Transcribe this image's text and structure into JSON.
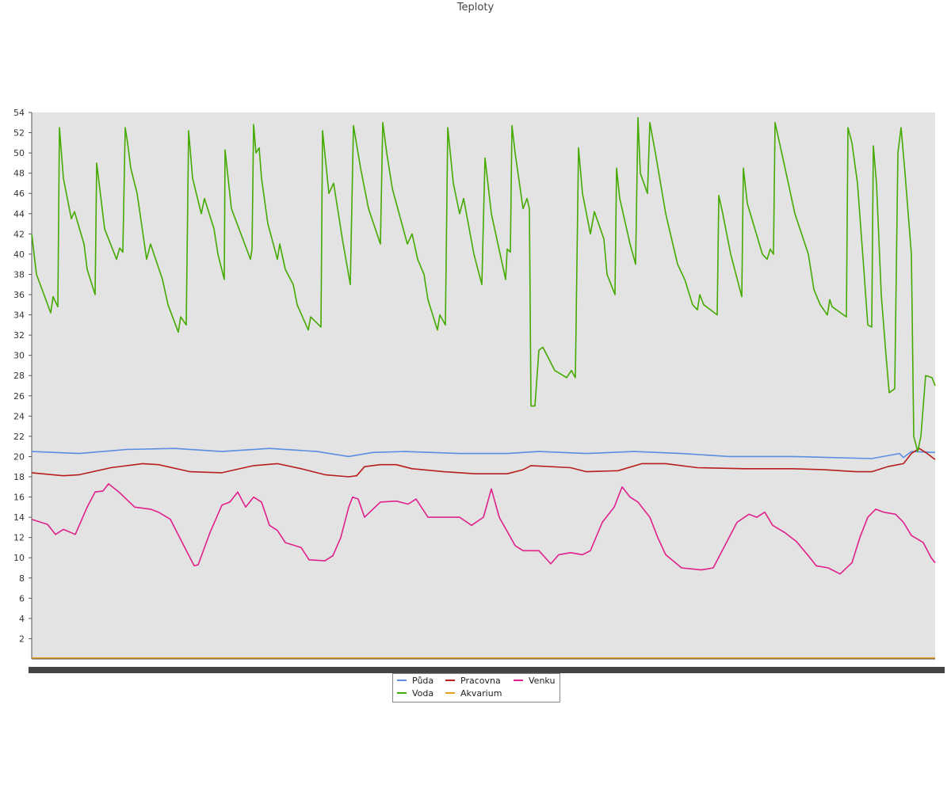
{
  "chart_data": {
    "type": "line",
    "title": "Teploty",
    "xlabel": "",
    "ylabel": "",
    "ylim": [
      0,
      54
    ],
    "yticks": [
      2,
      4,
      6,
      8,
      10,
      12,
      14,
      16,
      18,
      20,
      22,
      24,
      26,
      28,
      30,
      32,
      34,
      36,
      38,
      40,
      42,
      44,
      46,
      48,
      50,
      52,
      54
    ],
    "grid": false,
    "legend_position": "bottom",
    "x_domain": [
      0,
      1140
    ],
    "series": [
      {
        "name": "Půda",
        "color": "#5b8de0",
        "points": [
          [
            0,
            20.5
          ],
          [
            60,
            20.3
          ],
          [
            120,
            20.7
          ],
          [
            180,
            20.8
          ],
          [
            240,
            20.5
          ],
          [
            300,
            20.8
          ],
          [
            360,
            20.5
          ],
          [
            400,
            20.0
          ],
          [
            430,
            20.4
          ],
          [
            470,
            20.5
          ],
          [
            540,
            20.3
          ],
          [
            600,
            20.3
          ],
          [
            640,
            20.5
          ],
          [
            700,
            20.3
          ],
          [
            760,
            20.5
          ],
          [
            820,
            20.3
          ],
          [
            880,
            20.0
          ],
          [
            960,
            20.0
          ],
          [
            1060,
            19.8
          ],
          [
            1095,
            20.3
          ],
          [
            1100,
            19.9
          ],
          [
            1110,
            20.5
          ],
          [
            1140,
            20.4
          ]
        ]
      },
      {
        "name": "Voda",
        "color": "#44aa00",
        "points": [
          [
            0,
            42.0
          ],
          [
            6,
            38.0
          ],
          [
            24,
            34.2
          ],
          [
            27,
            35.8
          ],
          [
            33,
            34.8
          ],
          [
            35,
            52.5
          ],
          [
            40,
            47.5
          ],
          [
            50,
            43.5
          ],
          [
            54,
            44.2
          ],
          [
            66,
            41.0
          ],
          [
            70,
            38.5
          ],
          [
            80,
            36.0
          ],
          [
            82,
            49.0
          ],
          [
            92,
            42.5
          ],
          [
            107,
            39.5
          ],
          [
            111,
            40.6
          ],
          [
            115,
            40.2
          ],
          [
            118,
            52.5
          ],
          [
            121,
            51.0
          ],
          [
            125,
            48.5
          ],
          [
            133,
            46.0
          ],
          [
            145,
            39.5
          ],
          [
            150,
            41.0
          ],
          [
            165,
            37.5
          ],
          [
            172,
            35.0
          ],
          [
            185,
            32.3
          ],
          [
            188,
            33.8
          ],
          [
            195,
            33.0
          ],
          [
            198,
            52.2
          ],
          [
            203,
            47.5
          ],
          [
            214,
            44.0
          ],
          [
            218,
            45.5
          ],
          [
            230,
            42.5
          ],
          [
            235,
            40.0
          ],
          [
            243,
            37.5
          ],
          [
            244,
            50.3
          ],
          [
            252,
            44.5
          ],
          [
            276,
            39.5
          ],
          [
            278,
            40.5
          ],
          [
            280,
            52.8
          ],
          [
            283,
            50.0
          ],
          [
            287,
            50.5
          ],
          [
            290,
            47.5
          ],
          [
            298,
            43.0
          ],
          [
            310,
            39.5
          ],
          [
            313,
            41.0
          ],
          [
            320,
            38.5
          ],
          [
            330,
            37.0
          ],
          [
            335,
            35.0
          ],
          [
            349,
            32.5
          ],
          [
            352,
            33.8
          ],
          [
            365,
            32.8
          ],
          [
            367,
            52.2
          ],
          [
            375,
            46.0
          ],
          [
            381,
            47.0
          ],
          [
            385,
            45.0
          ],
          [
            392,
            41.5
          ],
          [
            402,
            37.0
          ],
          [
            406,
            52.7
          ],
          [
            415,
            48.5
          ],
          [
            425,
            44.5
          ],
          [
            440,
            41.0
          ],
          [
            443,
            53.0
          ],
          [
            448,
            50.0
          ],
          [
            455,
            46.5
          ],
          [
            474,
            41.0
          ],
          [
            480,
            42.0
          ],
          [
            487,
            39.5
          ],
          [
            495,
            38.0
          ],
          [
            500,
            35.5
          ],
          [
            512,
            32.5
          ],
          [
            515,
            34.0
          ],
          [
            522,
            33.0
          ],
          [
            525,
            52.5
          ],
          [
            532,
            47.0
          ],
          [
            540,
            44.0
          ],
          [
            545,
            45.5
          ],
          [
            558,
            40.0
          ],
          [
            568,
            37.0
          ],
          [
            572,
            49.5
          ],
          [
            580,
            44.0
          ],
          [
            598,
            37.5
          ],
          [
            600,
            40.5
          ],
          [
            604,
            40.2
          ],
          [
            606,
            52.7
          ],
          [
            610,
            50.0
          ],
          [
            620,
            44.5
          ],
          [
            625,
            45.5
          ],
          [
            628,
            44.5
          ],
          [
            630,
            25.0
          ],
          [
            635,
            25.0
          ],
          [
            640,
            30.5
          ],
          [
            645,
            30.8
          ],
          [
            660,
            28.5
          ],
          [
            675,
            27.8
          ],
          [
            681,
            28.5
          ],
          [
            686,
            27.8
          ],
          [
            690,
            50.5
          ],
          [
            695,
            46.0
          ],
          [
            705,
            42.0
          ],
          [
            710,
            44.2
          ],
          [
            722,
            41.5
          ],
          [
            726,
            38.0
          ],
          [
            736,
            36.0
          ],
          [
            738,
            48.5
          ],
          [
            742,
            45.5
          ],
          [
            755,
            41.0
          ],
          [
            762,
            39.0
          ],
          [
            765,
            53.5
          ],
          [
            768,
            48.0
          ],
          [
            777,
            46.0
          ],
          [
            780,
            53.0
          ],
          [
            787,
            50.0
          ],
          [
            800,
            44.0
          ],
          [
            815,
            39.0
          ],
          [
            824,
            37.5
          ],
          [
            834,
            35.0
          ],
          [
            840,
            34.5
          ],
          [
            843,
            36.0
          ],
          [
            848,
            35.0
          ],
          [
            865,
            34.0
          ],
          [
            867,
            45.8
          ],
          [
            872,
            44.0
          ],
          [
            882,
            40.0
          ],
          [
            896,
            35.8
          ],
          [
            898,
            48.5
          ],
          [
            903,
            45.0
          ],
          [
            922,
            40.0
          ],
          [
            928,
            39.5
          ],
          [
            932,
            40.5
          ],
          [
            936,
            40.0
          ],
          [
            938,
            53.0
          ],
          [
            945,
            50.5
          ],
          [
            952,
            48.0
          ],
          [
            963,
            44.0
          ],
          [
            980,
            40.0
          ],
          [
            987,
            36.5
          ],
          [
            995,
            35.0
          ],
          [
            1004,
            34.0
          ],
          [
            1007,
            35.5
          ],
          [
            1010,
            34.8
          ],
          [
            1028,
            33.8
          ],
          [
            1030,
            52.5
          ],
          [
            1035,
            51.0
          ],
          [
            1042,
            47.0
          ],
          [
            1050,
            38.5
          ],
          [
            1055,
            33.0
          ],
          [
            1060,
            32.8
          ],
          [
            1062,
            50.7
          ],
          [
            1066,
            47.0
          ],
          [
            1072,
            36.0
          ],
          [
            1078,
            30.0
          ],
          [
            1082,
            26.3
          ],
          [
            1089,
            26.7
          ],
          [
            1093,
            50.0
          ],
          [
            1097,
            52.5
          ],
          [
            1102,
            48.0
          ],
          [
            1106,
            44.0
          ],
          [
            1110,
            40.0
          ],
          [
            1113,
            22.0
          ],
          [
            1118,
            20.5
          ],
          [
            1122,
            22.0
          ],
          [
            1128,
            28.0
          ],
          [
            1136,
            27.8
          ],
          [
            1140,
            27.0
          ]
        ]
      },
      {
        "name": "Pracovna",
        "color": "#b81e1e",
        "points": [
          [
            0,
            18.4
          ],
          [
            40,
            18.1
          ],
          [
            60,
            18.2
          ],
          [
            100,
            18.9
          ],
          [
            140,
            19.3
          ],
          [
            160,
            19.2
          ],
          [
            200,
            18.5
          ],
          [
            240,
            18.4
          ],
          [
            280,
            19.1
          ],
          [
            310,
            19.3
          ],
          [
            340,
            18.8
          ],
          [
            370,
            18.2
          ],
          [
            400,
            18.0
          ],
          [
            410,
            18.1
          ],
          [
            420,
            19.0
          ],
          [
            440,
            19.2
          ],
          [
            460,
            19.2
          ],
          [
            480,
            18.8
          ],
          [
            520,
            18.5
          ],
          [
            560,
            18.3
          ],
          [
            600,
            18.3
          ],
          [
            620,
            18.7
          ],
          [
            630,
            19.1
          ],
          [
            680,
            18.9
          ],
          [
            700,
            18.5
          ],
          [
            740,
            18.6
          ],
          [
            770,
            19.3
          ],
          [
            800,
            19.3
          ],
          [
            840,
            18.9
          ],
          [
            900,
            18.8
          ],
          [
            960,
            18.8
          ],
          [
            1000,
            18.7
          ],
          [
            1040,
            18.5
          ],
          [
            1060,
            18.5
          ],
          [
            1080,
            19.0
          ],
          [
            1100,
            19.3
          ],
          [
            1110,
            20.3
          ],
          [
            1120,
            20.8
          ],
          [
            1130,
            20.3
          ],
          [
            1140,
            19.7
          ]
        ]
      },
      {
        "name": "Akvarium",
        "color": "#e8a020",
        "points": [
          [
            0,
            0.1
          ],
          [
            1140,
            0.1
          ]
        ]
      },
      {
        "name": "Venku",
        "color": "#e0208c",
        "points": [
          [
            0,
            13.8
          ],
          [
            20,
            13.3
          ],
          [
            30,
            12.3
          ],
          [
            40,
            12.8
          ],
          [
            55,
            12.3
          ],
          [
            70,
            15.0
          ],
          [
            80,
            16.5
          ],
          [
            90,
            16.6
          ],
          [
            97,
            17.3
          ],
          [
            110,
            16.5
          ],
          [
            130,
            15.0
          ],
          [
            150,
            14.8
          ],
          [
            160,
            14.5
          ],
          [
            175,
            13.8
          ],
          [
            190,
            11.5
          ],
          [
            205,
            9.2
          ],
          [
            210,
            9.3
          ],
          [
            225,
            12.5
          ],
          [
            240,
            15.2
          ],
          [
            250,
            15.5
          ],
          [
            260,
            16.5
          ],
          [
            270,
            15.0
          ],
          [
            280,
            16.0
          ],
          [
            290,
            15.5
          ],
          [
            300,
            13.2
          ],
          [
            310,
            12.7
          ],
          [
            320,
            11.5
          ],
          [
            340,
            11.0
          ],
          [
            350,
            9.8
          ],
          [
            370,
            9.7
          ],
          [
            380,
            10.2
          ],
          [
            390,
            12.0
          ],
          [
            400,
            15.0
          ],
          [
            405,
            16.0
          ],
          [
            412,
            15.8
          ],
          [
            420,
            14.0
          ],
          [
            440,
            15.5
          ],
          [
            460,
            15.6
          ],
          [
            475,
            15.3
          ],
          [
            485,
            15.8
          ],
          [
            500,
            14.0
          ],
          [
            520,
            14.0
          ],
          [
            540,
            14.0
          ],
          [
            555,
            13.2
          ],
          [
            570,
            14.0
          ],
          [
            580,
            16.8
          ],
          [
            590,
            14.0
          ],
          [
            610,
            11.2
          ],
          [
            620,
            10.7
          ],
          [
            640,
            10.7
          ],
          [
            655,
            9.4
          ],
          [
            665,
            10.3
          ],
          [
            680,
            10.5
          ],
          [
            695,
            10.3
          ],
          [
            705,
            10.7
          ],
          [
            720,
            13.5
          ],
          [
            735,
            15.0
          ],
          [
            745,
            17.0
          ],
          [
            755,
            16.0
          ],
          [
            765,
            15.5
          ],
          [
            780,
            14.0
          ],
          [
            790,
            12.0
          ],
          [
            800,
            10.3
          ],
          [
            820,
            9.0
          ],
          [
            845,
            8.8
          ],
          [
            860,
            9.0
          ],
          [
            870,
            10.5
          ],
          [
            890,
            13.5
          ],
          [
            905,
            14.3
          ],
          [
            915,
            14.0
          ],
          [
            925,
            14.5
          ],
          [
            935,
            13.2
          ],
          [
            950,
            12.5
          ],
          [
            965,
            11.6
          ],
          [
            980,
            10.2
          ],
          [
            990,
            9.2
          ],
          [
            1005,
            9.0
          ],
          [
            1020,
            8.4
          ],
          [
            1035,
            9.5
          ],
          [
            1045,
            12.0
          ],
          [
            1055,
            14.0
          ],
          [
            1065,
            14.8
          ],
          [
            1075,
            14.5
          ],
          [
            1090,
            14.3
          ],
          [
            1100,
            13.5
          ],
          [
            1110,
            12.2
          ],
          [
            1125,
            11.5
          ],
          [
            1135,
            10.0
          ],
          [
            1140,
            9.5
          ]
        ]
      }
    ]
  }
}
